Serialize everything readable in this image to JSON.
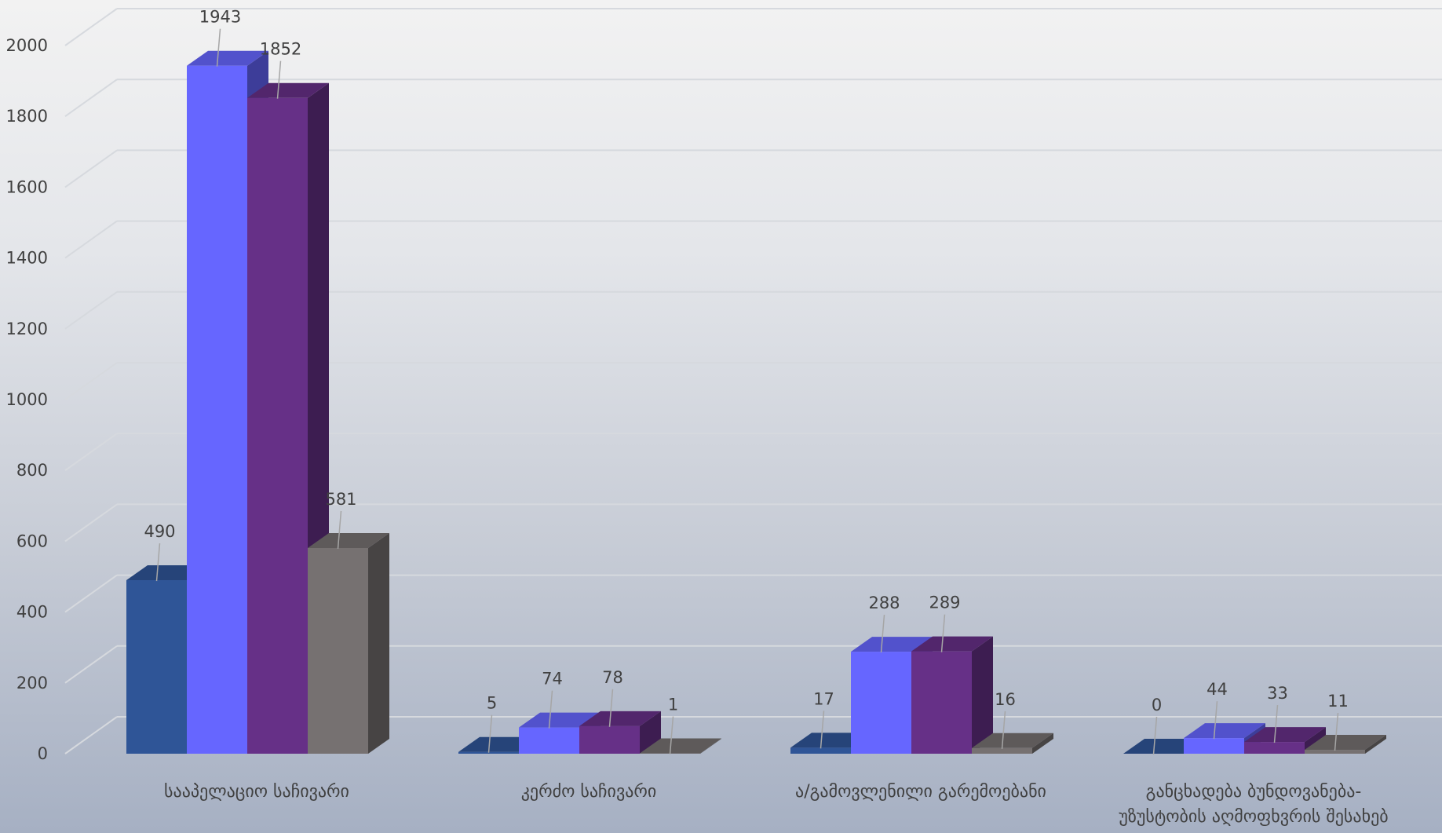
{
  "chart_data": {
    "type": "bar",
    "title": "",
    "xlabel": "",
    "ylabel": "",
    "ylim": [
      0,
      2000
    ],
    "yticks": [
      "0",
      "200",
      "400",
      "600",
      "800",
      "1000",
      "1200",
      "1400",
      "1600",
      "1800",
      "2000"
    ],
    "grid": true,
    "legend": "none",
    "categories": [
      [
        "სააპელაციო საჩივარი"
      ],
      [
        "კერძო საჩივარი"
      ],
      [
        "ა/გამოვლენილი გარემოებანი"
      ],
      [
        "განცხადება ბუნდოვანება-",
        "უზუსტობის აღმოფხვრის შესახებ"
      ]
    ],
    "series": [
      {
        "color": "#2f5597",
        "values": [
          490,
          5,
          17,
          0
        ]
      },
      {
        "color": "#6666ff",
        "values": [
          1943,
          74,
          288,
          44
        ]
      },
      {
        "color": "#663087",
        "values": [
          1852,
          78,
          289,
          33
        ]
      },
      {
        "color": "#767171",
        "values": [
          581,
          1,
          16,
          11
        ]
      }
    ]
  }
}
